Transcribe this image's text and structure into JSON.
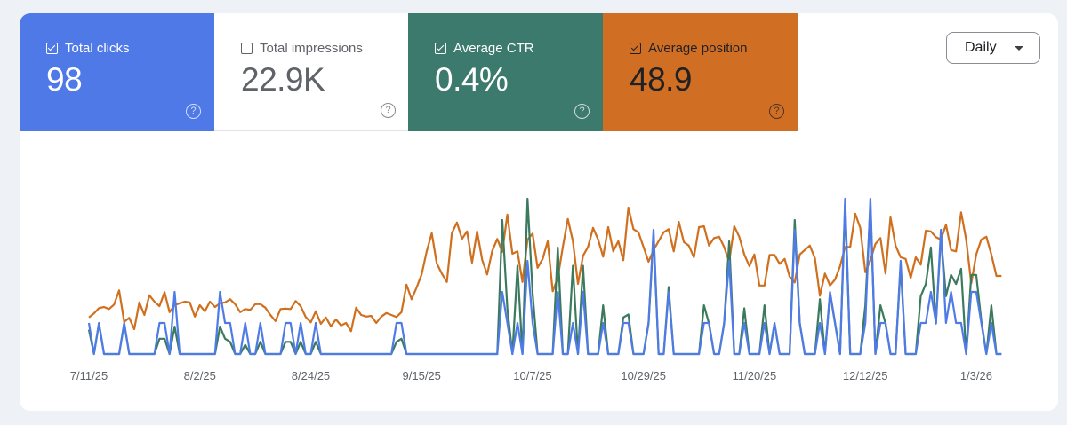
{
  "metrics": [
    {
      "label": "Total clicks",
      "value": "98",
      "checked": true,
      "color": "#5079e8"
    },
    {
      "label": "Total impressions",
      "value": "22.9K",
      "checked": false,
      "color": "#ffffff"
    },
    {
      "label": "Average CTR",
      "value": "0.4%",
      "checked": true,
      "color": "#3b7a6c"
    },
    {
      "label": "Average position",
      "value": "48.9",
      "checked": true,
      "color": "#d06e24"
    }
  ],
  "help_icon": "?",
  "granularity": {
    "selected": "Daily",
    "icon": "caret-down-icon"
  },
  "chart_data": {
    "type": "line",
    "x_tick_labels": [
      "7/11/25",
      "8/2/25",
      "8/24/25",
      "9/15/25",
      "10/7/25",
      "10/29/25",
      "11/20/25",
      "12/12/25",
      "1/3/26"
    ],
    "grid": false,
    "legend": "none",
    "series": [
      {
        "name": "Total clicks",
        "color": "#4f7be6",
        "ylim": [
          0,
          5
        ],
        "values": [
          1,
          0,
          1,
          0,
          0,
          0,
          0,
          1,
          0,
          0,
          0,
          0,
          0,
          0,
          1,
          1,
          0,
          2,
          0,
          0,
          0,
          0,
          0,
          0,
          0,
          0,
          2,
          1,
          1,
          0,
          0,
          1,
          0,
          0,
          1,
          0,
          0,
          0,
          0,
          1,
          1,
          0,
          1,
          0,
          0,
          1,
          0,
          0,
          0,
          0,
          0,
          0,
          0,
          0,
          0,
          0,
          0,
          0,
          0,
          0,
          0,
          1,
          1,
          0,
          0,
          0,
          0,
          0,
          0,
          0,
          0,
          0,
          0,
          0,
          0,
          0,
          0,
          0,
          0,
          0,
          0,
          0,
          2,
          1,
          0,
          1,
          0,
          3,
          1,
          0,
          0,
          0,
          0,
          2,
          0,
          0,
          1,
          0,
          2,
          0,
          0,
          0,
          1,
          0,
          0,
          0,
          1,
          1,
          0,
          0,
          0,
          1,
          4,
          0,
          0,
          2,
          0,
          0,
          0,
          0,
          0,
          0,
          1,
          1,
          0,
          0,
          1,
          3,
          0,
          0,
          1,
          0,
          0,
          0,
          1,
          0,
          1,
          0,
          0,
          0,
          4,
          1,
          0,
          0,
          0,
          1,
          0,
          2,
          1,
          0,
          5,
          0,
          0,
          0,
          1,
          5,
          0,
          1,
          1,
          0,
          0,
          3,
          0,
          0,
          0,
          1,
          1,
          2,
          1,
          4,
          1,
          2,
          1,
          1,
          0,
          2,
          2,
          1,
          0,
          1,
          0,
          0
        ]
      },
      {
        "name": "Average CTR",
        "color": "#3b7a5e",
        "ylim": [
          0,
          5.1
        ],
        "values": [
          0.8,
          0,
          1.0,
          0,
          0,
          0,
          0,
          1.0,
          0,
          0,
          0,
          0,
          0,
          0,
          0.5,
          0.5,
          0,
          0.9,
          0,
          0,
          0,
          0,
          0,
          0,
          0,
          0,
          0.9,
          0.5,
          0.4,
          0,
          0,
          0.3,
          0,
          0,
          0.4,
          0,
          0,
          0,
          0,
          0.4,
          0.4,
          0,
          0.4,
          0,
          0,
          0.4,
          0,
          0,
          0,
          0,
          0,
          0,
          0,
          0,
          0,
          0,
          0,
          0,
          0,
          0,
          0,
          0.4,
          0.5,
          0,
          0,
          0,
          0,
          0,
          0,
          0,
          0,
          0,
          0,
          0,
          0,
          0,
          0,
          0,
          0,
          0,
          0,
          0,
          4.4,
          1.5,
          0,
          2.9,
          0,
          5.1,
          2.0,
          0,
          0,
          0,
          0,
          3.5,
          0,
          0,
          2.9,
          0,
          2.9,
          0,
          0,
          0,
          1.6,
          0,
          0,
          0,
          1.2,
          1.3,
          0,
          0,
          0,
          1.0,
          3.9,
          0,
          0,
          2.2,
          0,
          0,
          0,
          0,
          0,
          0,
          1.6,
          1.0,
          0,
          0,
          1.0,
          3.7,
          0,
          0,
          1.5,
          0,
          0,
          0,
          1.6,
          0,
          1.0,
          0,
          0,
          0,
          4.4,
          1.0,
          0,
          0,
          0,
          1.8,
          0,
          2.0,
          1.0,
          0,
          4.9,
          0,
          0,
          0,
          1.6,
          4.9,
          0,
          1.6,
          1.0,
          0,
          0,
          2.9,
          0,
          0,
          0,
          1.9,
          2.3,
          3.5,
          1.0,
          3.9,
          1.9,
          2.6,
          2.3,
          2.8,
          0,
          2.6,
          2.6,
          1.1,
          0,
          1.6,
          0,
          0
        ]
      },
      {
        "name": "Average position",
        "color": "#d0701f",
        "ylim": [
          0,
          83.6
        ],
        "inverted": true,
        "values": [
          67.1,
          65.3,
          62.9,
          62.4,
          63.3,
          61.3,
          54.9,
          69.1,
          67.3,
          72.4,
          60.3,
          66.0,
          57.1,
          60.0,
          62.0,
          55.7,
          64.7,
          61.6,
          60.7,
          60.0,
          60.3,
          66.7,
          61.6,
          64.3,
          60.0,
          62.4,
          60.7,
          60.3,
          58.9,
          61.1,
          64.7,
          63.3,
          63.7,
          61.1,
          61.1,
          62.7,
          66.0,
          68.7,
          63.3,
          63.1,
          63.3,
          59.7,
          62.0,
          66.9,
          69.3,
          64.3,
          70.0,
          67.1,
          71.1,
          68.0,
          70.7,
          69.6,
          73.3,
          62.7,
          66.0,
          66.7,
          66.4,
          69.6,
          66.7,
          65.1,
          66.0,
          66.9,
          64.7,
          52.3,
          58.9,
          53.6,
          47.7,
          37.3,
          29.1,
          42.7,
          47.3,
          51.1,
          29.1,
          24.3,
          31.7,
          28.3,
          42.4,
          28.3,
          41.1,
          47.7,
          37.1,
          31.7,
          37.6,
          20.7,
          38.4,
          37.3,
          51.1,
          32.0,
          29.3,
          44.7,
          40.7,
          32.7,
          55.3,
          49.3,
          35.3,
          22.7,
          32.7,
          52.0,
          39.3,
          35.3,
          26.7,
          32.0,
          39.7,
          26.4,
          37.3,
          32.7,
          41.3,
          17.6,
          27.3,
          28.7,
          35.3,
          42.0,
          36.7,
          32.7,
          28.7,
          27.3,
          37.3,
          24.0,
          33.1,
          34.7,
          40.0,
          26.4,
          26.0,
          34.7,
          31.3,
          30.7,
          35.3,
          42.0,
          26.0,
          30.7,
          38.7,
          44.0,
          38.7,
          52.7,
          52.7,
          38.9,
          38.9,
          42.9,
          40.7,
          48.7,
          51.3,
          38.7,
          36.7,
          34.7,
          40.4,
          57.3,
          47.3,
          52.7,
          50.0,
          44.0,
          35.3,
          35.3,
          20.3,
          26.7,
          46.7,
          41.3,
          34.0,
          31.3,
          47.3,
          22.0,
          34.7,
          40.0,
          40.7,
          49.3,
          40.0,
          43.3,
          28.0,
          28.3,
          30.9,
          32.0,
          25.3,
          36.7,
          37.3,
          19.7,
          32.0,
          51.7,
          38.7,
          32.0,
          30.7,
          38.7,
          48.4,
          48.4
        ]
      }
    ]
  }
}
